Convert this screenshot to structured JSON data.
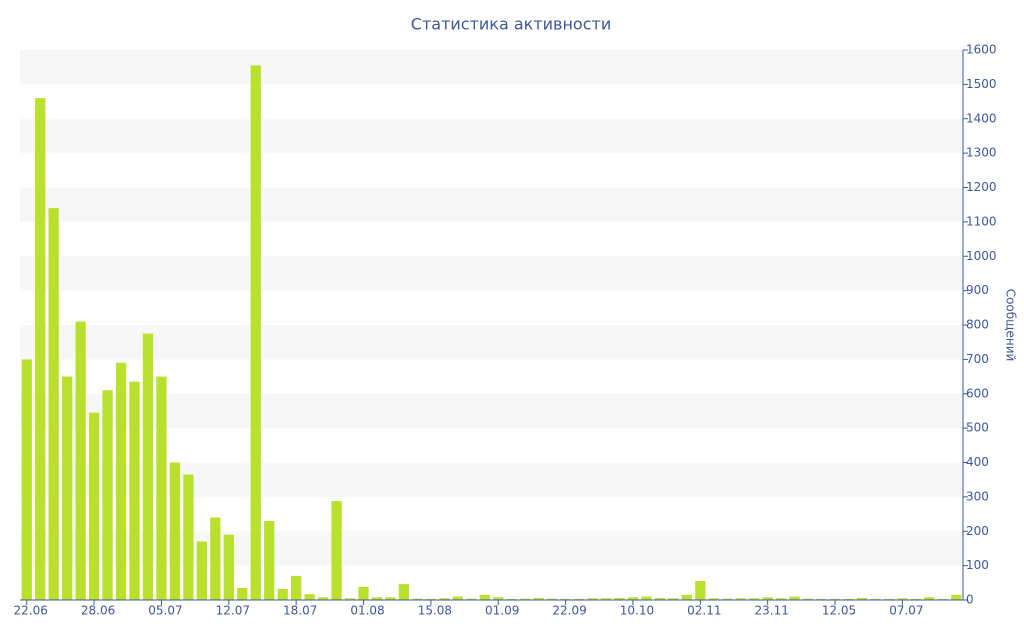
{
  "chart_data": {
    "type": "bar",
    "title": "Статистика активности",
    "y_label": "Сообщений",
    "color": "#b8e02c",
    "band_color": "#f7f7f7",
    "categories": [
      "22.06",
      null,
      null,
      null,
      null,
      "28.06",
      null,
      null,
      null,
      null,
      "05.07",
      null,
      null,
      null,
      null,
      "12.07",
      null,
      null,
      null,
      null,
      "18.07",
      null,
      null,
      null,
      null,
      "01.08",
      null,
      null,
      null,
      null,
      "15.08",
      null,
      null,
      null,
      null,
      "01.09",
      null,
      null,
      null,
      null,
      "22.09",
      null,
      null,
      null,
      null,
      "10.10",
      null,
      null,
      null,
      null,
      "02.11",
      null,
      null,
      null,
      null,
      "23.11",
      null,
      null,
      null,
      null,
      "12.05",
      null,
      null,
      null,
      null,
      "07.07",
      null,
      null,
      null,
      null
    ],
    "values": [
      700,
      1460,
      1140,
      650,
      810,
      545,
      610,
      690,
      635,
      775,
      650,
      400,
      365,
      170,
      240,
      190,
      35,
      1555,
      230,
      32,
      70,
      17,
      8,
      288,
      5,
      38,
      8,
      8,
      46,
      4,
      3,
      5,
      10,
      4,
      15,
      8,
      3,
      4,
      6,
      4,
      3,
      3,
      5,
      5,
      6,
      8,
      10,
      6,
      5,
      15,
      55,
      5,
      4,
      5,
      5,
      8,
      5,
      10,
      4,
      3,
      3,
      3,
      6,
      3,
      3,
      5,
      3,
      8,
      3,
      15
    ],
    "ylim": [
      0,
      1600
    ],
    "yticks": [
      0,
      100,
      200,
      300,
      400,
      500,
      600,
      700,
      800,
      900,
      1000,
      1100,
      1200,
      1300,
      1400,
      1500,
      1600
    ]
  }
}
